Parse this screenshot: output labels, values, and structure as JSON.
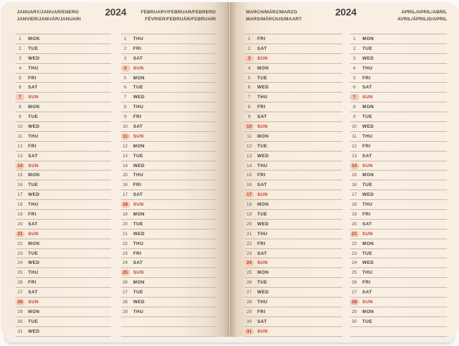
{
  "year": "2024",
  "colors": {
    "paper": "#f8eee3",
    "rule_line": "#c3b5a4",
    "text": "#474038",
    "sunday_red": "#bf3a27",
    "sunday_circle": "#f6c7b1",
    "background": "#fbfafa"
  },
  "pages": [
    {
      "side": "left",
      "year_label": "2024",
      "columns": [
        {
          "month": "january",
          "header_line1": "JANUARY/JANUAR/ENERO",
          "header_line2": "JANVIER/JANUÁR/JANUARI",
          "empty_rows": 0,
          "rows": [
            [
              "1",
              "MON"
            ],
            [
              "2",
              "TUE"
            ],
            [
              "3",
              "WED"
            ],
            [
              "4",
              "THU"
            ],
            [
              "5",
              "FRI"
            ],
            [
              "6",
              "SAT"
            ],
            [
              "7",
              "SUN"
            ],
            [
              "8",
              "MON"
            ],
            [
              "9",
              "TUE"
            ],
            [
              "10",
              "WED"
            ],
            [
              "11",
              "THU"
            ],
            [
              "12",
              "FRI"
            ],
            [
              "13",
              "SAT"
            ],
            [
              "14",
              "SUN"
            ],
            [
              "15",
              "MON"
            ],
            [
              "16",
              "TUE"
            ],
            [
              "17",
              "WED"
            ],
            [
              "18",
              "THU"
            ],
            [
              "19",
              "FRI"
            ],
            [
              "20",
              "SAT"
            ],
            [
              "21",
              "SUN"
            ],
            [
              "22",
              "MON"
            ],
            [
              "23",
              "TUE"
            ],
            [
              "24",
              "WED"
            ],
            [
              "25",
              "THU"
            ],
            [
              "26",
              "FRI"
            ],
            [
              "27",
              "SAT"
            ],
            [
              "28",
              "SUN"
            ],
            [
              "29",
              "MON"
            ],
            [
              "30",
              "TUE"
            ],
            [
              "31",
              "WED"
            ]
          ]
        },
        {
          "month": "february",
          "header_line1": "FEBRUARY/FEBRUAR/FEBRERO",
          "header_line2": "FÉVRIER/FEBRUÁR/FEBRUARI",
          "empty_rows": 2,
          "rows": [
            [
              "1",
              "THU"
            ],
            [
              "2",
              "FRI"
            ],
            [
              "3",
              "SAT"
            ],
            [
              "4",
              "SUN"
            ],
            [
              "5",
              "MON"
            ],
            [
              "6",
              "TUE"
            ],
            [
              "7",
              "WED"
            ],
            [
              "8",
              "THU"
            ],
            [
              "9",
              "FRI"
            ],
            [
              "10",
              "SAT"
            ],
            [
              "11",
              "SUN"
            ],
            [
              "12",
              "MON"
            ],
            [
              "13",
              "TUE"
            ],
            [
              "14",
              "WED"
            ],
            [
              "15",
              "THU"
            ],
            [
              "16",
              "FRI"
            ],
            [
              "17",
              "SAT"
            ],
            [
              "18",
              "SUN"
            ],
            [
              "19",
              "MON"
            ],
            [
              "20",
              "TUE"
            ],
            [
              "21",
              "WED"
            ],
            [
              "22",
              "THU"
            ],
            [
              "23",
              "FRI"
            ],
            [
              "24",
              "SAT"
            ],
            [
              "25",
              "SUN"
            ],
            [
              "26",
              "MON"
            ],
            [
              "27",
              "TUE"
            ],
            [
              "28",
              "WED"
            ],
            [
              "29",
              "THU"
            ]
          ]
        }
      ]
    },
    {
      "side": "right",
      "year_label": "2024",
      "columns": [
        {
          "month": "march",
          "header_line1": "MARCH/MÄRZ/MARZO",
          "header_line2": "MARS/MÁRCIUS/MAART",
          "empty_rows": 0,
          "rows": [
            [
              "1",
              "FRI"
            ],
            [
              "2",
              "SAT"
            ],
            [
              "3",
              "SUN"
            ],
            [
              "4",
              "MON"
            ],
            [
              "5",
              "TUE"
            ],
            [
              "6",
              "WED"
            ],
            [
              "7",
              "THU"
            ],
            [
              "8",
              "FRI"
            ],
            [
              "9",
              "SAT"
            ],
            [
              "10",
              "SUN"
            ],
            [
              "11",
              "MON"
            ],
            [
              "12",
              "TUE"
            ],
            [
              "13",
              "WED"
            ],
            [
              "14",
              "THU"
            ],
            [
              "15",
              "FRI"
            ],
            [
              "16",
              "SAT"
            ],
            [
              "17",
              "SUN"
            ],
            [
              "18",
              "MON"
            ],
            [
              "19",
              "TUE"
            ],
            [
              "20",
              "WED"
            ],
            [
              "21",
              "THU"
            ],
            [
              "22",
              "FRI"
            ],
            [
              "23",
              "SAT"
            ],
            [
              "24",
              "SUN"
            ],
            [
              "25",
              "MON"
            ],
            [
              "26",
              "TUE"
            ],
            [
              "27",
              "WED"
            ],
            [
              "28",
              "THU"
            ],
            [
              "29",
              "FRI"
            ],
            [
              "30",
              "SAT"
            ],
            [
              "31",
              "SUN"
            ]
          ]
        },
        {
          "month": "april",
          "header_line1": "APRIL/APRIL/ABRIL",
          "header_line2": "AVRIL/ÁPRILIS/APRIL",
          "empty_rows": 1,
          "rows": [
            [
              "1",
              "MON"
            ],
            [
              "2",
              "TUE"
            ],
            [
              "3",
              "WED"
            ],
            [
              "4",
              "THU"
            ],
            [
              "5",
              "FRI"
            ],
            [
              "6",
              "SAT"
            ],
            [
              "7",
              "SUN"
            ],
            [
              "8",
              "MON"
            ],
            [
              "9",
              "TUE"
            ],
            [
              "10",
              "WED"
            ],
            [
              "11",
              "THU"
            ],
            [
              "12",
              "FRI"
            ],
            [
              "13",
              "SAT"
            ],
            [
              "14",
              "SUN"
            ],
            [
              "15",
              "MON"
            ],
            [
              "16",
              "TUE"
            ],
            [
              "17",
              "WED"
            ],
            [
              "18",
              "THU"
            ],
            [
              "19",
              "FRI"
            ],
            [
              "20",
              "SAT"
            ],
            [
              "21",
              "SUN"
            ],
            [
              "22",
              "MON"
            ],
            [
              "23",
              "TUE"
            ],
            [
              "24",
              "WED"
            ],
            [
              "25",
              "THU"
            ],
            [
              "26",
              "FRI"
            ],
            [
              "27",
              "SAT"
            ],
            [
              "28",
              "SUN"
            ],
            [
              "29",
              "MON"
            ],
            [
              "30",
              "TUE"
            ]
          ]
        }
      ]
    }
  ]
}
